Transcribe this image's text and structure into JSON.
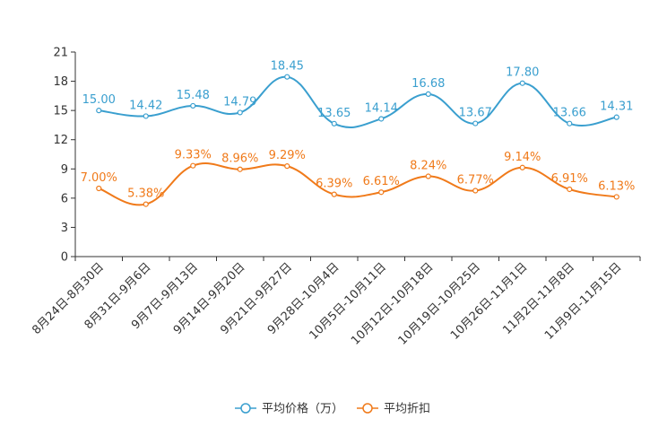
{
  "chart_data": {
    "type": "line",
    "categories": [
      "8月24日-8月30日",
      "8月31日-9月6日",
      "9月7日-9月13日",
      "9月14日-9月20日",
      "9月21日-9月27日",
      "9月28日-10月4日",
      "10月5日-10月11日",
      "10月12日-10月18日",
      "10月19日-10月25日",
      "10月26日-11月1日",
      "11月2日-11月8日",
      "11月9日-11月15日"
    ],
    "ylim": [
      0,
      21
    ],
    "yticks": [
      0,
      3,
      6,
      9,
      12,
      15,
      18,
      21
    ],
    "series": [
      {
        "name": "平均价格（万）",
        "color": "#3a9fcf",
        "values": [
          15.0,
          14.42,
          15.48,
          14.79,
          18.45,
          13.65,
          14.14,
          16.68,
          13.67,
          17.8,
          13.66,
          14.31
        ],
        "labels": [
          "15.00",
          "14.42",
          "15.48",
          "14.79",
          "18.45",
          "13.65",
          "14.14",
          "16.68",
          "13.67",
          "17.80",
          "13.66",
          "14.31"
        ]
      },
      {
        "name": "平均折扣",
        "color": "#f07a1a",
        "values": [
          7.0,
          5.38,
          9.33,
          8.96,
          9.29,
          6.39,
          6.61,
          8.24,
          6.77,
          9.14,
          6.91,
          6.13
        ],
        "labels": [
          "7.00%",
          "5.38%",
          "9.33%",
          "8.96%",
          "9.29%",
          "6.39%",
          "6.61%",
          "8.24%",
          "6.77%",
          "9.14%",
          "6.91%",
          "6.13%"
        ]
      }
    ]
  }
}
